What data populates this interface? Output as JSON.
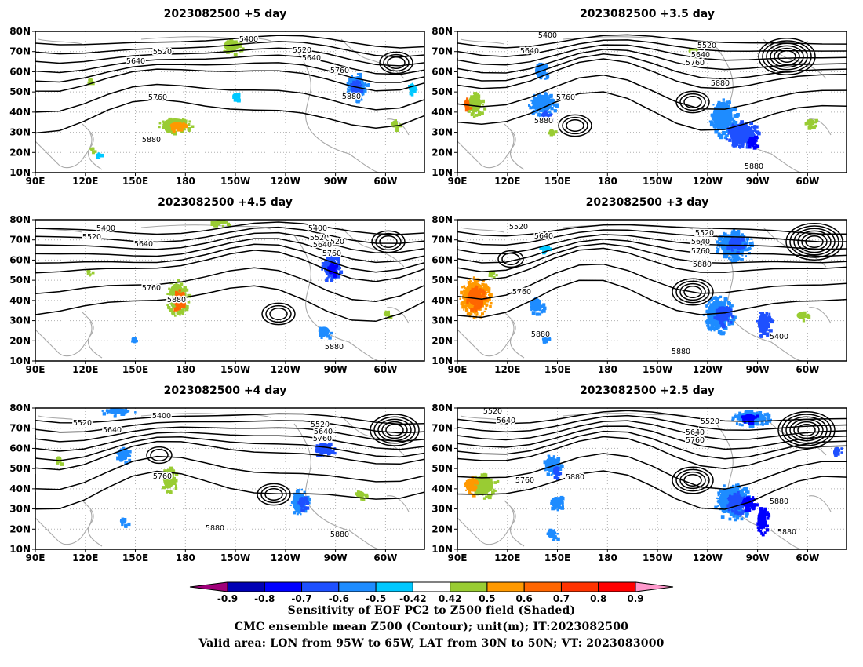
{
  "panels": [
    {
      "title": "2023082500 +5 day",
      "contour_labels": [
        "5400",
        "5520",
        "5520",
        "5640",
        "5640",
        "5760",
        "5760",
        "5880",
        "5880"
      ],
      "contour_label_values": [
        5400,
        5520,
        5520,
        5640,
        5640,
        5760,
        5760,
        5880,
        5880
      ]
    },
    {
      "title": "2023082500 +3.5 day",
      "contour_labels": [
        "5400",
        "5520",
        "5640",
        "5640",
        "5760",
        "5760",
        "5880",
        "5880",
        "5880"
      ]
    },
    {
      "title": "2023082500 +4.5 day",
      "contour_labels": [
        "5400",
        "5400",
        "5520",
        "5520",
        "5520",
        "5640",
        "5640",
        "5760",
        "5760",
        "5880",
        "5880"
      ]
    },
    {
      "title": "2023082500 +3 day",
      "contour_labels": [
        "5520",
        "5520",
        "5640",
        "5640",
        "5760",
        "5760",
        "5880",
        "5880",
        "5880",
        "5400"
      ]
    },
    {
      "title": "2023082500 +4 day",
      "contour_labels": [
        "5400",
        "5520",
        "5520",
        "5640",
        "5640",
        "5760",
        "5760",
        "5880",
        "5880"
      ]
    },
    {
      "title": "2023082500 +2.5 day",
      "contour_labels": [
        "5520",
        "5520",
        "5640",
        "5640",
        "5760",
        "5760",
        "5880",
        "5880",
        "5880"
      ]
    }
  ],
  "lat_ticks": [
    "80N",
    "70N",
    "60N",
    "50N",
    "40N",
    "30N",
    "20N",
    "10N"
  ],
  "lon_ticks": [
    "90E",
    "120E",
    "150E",
    "180",
    "150W",
    "120W",
    "90W",
    "60W"
  ],
  "colorbar": {
    "labels": [
      "-0.9",
      "-0.8",
      "-0.7",
      "-0.6",
      "-0.5",
      "-0.42",
      "0.42",
      "0.5",
      "0.6",
      "0.7",
      "0.8",
      "0.9"
    ],
    "colors": [
      "#a0007a",
      "#0000b4",
      "#0000ff",
      "#1e50ff",
      "#1e8cff",
      "#00c8ff",
      "#ffffff",
      "#99cc33",
      "#ff9900",
      "#ff6600",
      "#ff3300",
      "#ff0000",
      "#ff99cc"
    ]
  },
  "caption": {
    "line1": "Sensitivity of EOF PC2 to Z500 field (Shaded)",
    "line2": "CMC ensemble mean Z500 (Contour); unit(m); IT:2023082500",
    "line3": "Valid area: LON from 95W to 65W, LAT from 30N to 50N; VT: 2023083000"
  }
}
